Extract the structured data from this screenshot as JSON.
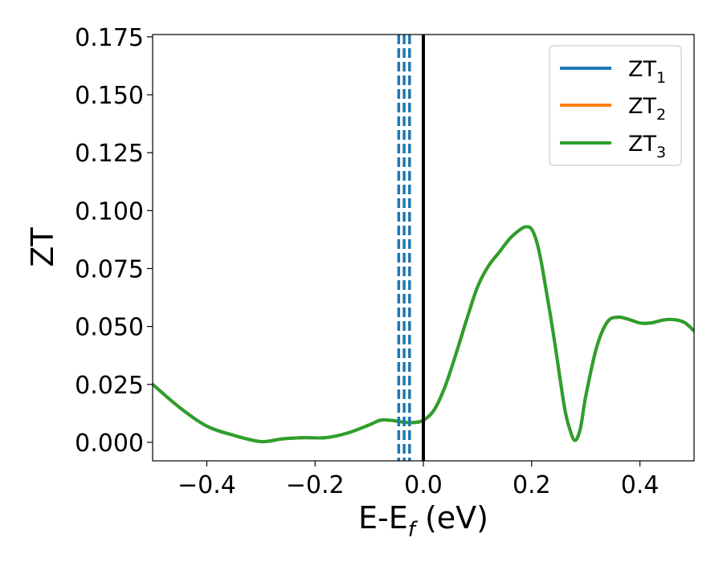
{
  "chart_data": {
    "type": "line",
    "xlabel": "E-E",
    "xlabel_sub": "f",
    "xlabel_unit": " (eV)",
    "ylabel": "ZT",
    "xlim": [
      -0.5,
      0.5
    ],
    "ylim": [
      -0.008,
      0.176
    ],
    "xticks": [
      -0.4,
      -0.2,
      0.0,
      0.2,
      0.4
    ],
    "xtick_labels": [
      "−0.4",
      "−0.2",
      "0.0",
      "0.2",
      "0.4"
    ],
    "yticks": [
      0.0,
      0.025,
      0.05,
      0.075,
      0.1,
      0.125,
      0.15,
      0.175
    ],
    "ytick_labels": [
      "0.000",
      "0.025",
      "0.050",
      "0.075",
      "0.100",
      "0.125",
      "0.150",
      "0.175"
    ],
    "legend_position": "top-right",
    "vertical_lines": [
      {
        "x": 0.0,
        "style": "solid",
        "color": "#000000"
      },
      {
        "x": -0.0455,
        "style": "dashed",
        "color": "#1f77b4"
      },
      {
        "x": -0.0355,
        "style": "dashed",
        "color": "#1f77b4"
      },
      {
        "x": -0.0255,
        "style": "dashed",
        "color": "#1f77b4"
      }
    ],
    "x": [
      -0.5,
      -0.45,
      -0.4,
      -0.35,
      -0.3,
      -0.26,
      -0.22,
      -0.18,
      -0.14,
      -0.1,
      -0.08,
      -0.06,
      -0.04,
      -0.02,
      0.0,
      0.02,
      0.04,
      0.06,
      0.08,
      0.1,
      0.12,
      0.14,
      0.16,
      0.18,
      0.19,
      0.2,
      0.21,
      0.22,
      0.24,
      0.26,
      0.27,
      0.28,
      0.29,
      0.3,
      0.32,
      0.34,
      0.36,
      0.38,
      0.4,
      0.42,
      0.45,
      0.48,
      0.5
    ],
    "series": [
      {
        "name": "ZT",
        "name_sub": "1",
        "color": "#1f77b4",
        "values": [
          0.025,
          0.015,
          0.007,
          0.003,
          0.0003,
          0.0015,
          0.002,
          0.002,
          0.004,
          0.0075,
          0.0095,
          0.0095,
          0.0088,
          0.0085,
          0.0095,
          0.014,
          0.024,
          0.038,
          0.053,
          0.067,
          0.076,
          0.082,
          0.088,
          0.092,
          0.093,
          0.092,
          0.086,
          0.075,
          0.047,
          0.016,
          0.006,
          0.0008,
          0.006,
          0.02,
          0.041,
          0.052,
          0.054,
          0.053,
          0.0515,
          0.0515,
          0.053,
          0.052,
          0.048
        ]
      },
      {
        "name": "ZT",
        "name_sub": "2",
        "color": "#ff7f0e",
        "values": [
          0.025,
          0.015,
          0.007,
          0.003,
          0.0003,
          0.0015,
          0.002,
          0.002,
          0.004,
          0.0075,
          0.0095,
          0.0095,
          0.0088,
          0.0085,
          0.0095,
          0.014,
          0.024,
          0.038,
          0.053,
          0.067,
          0.076,
          0.082,
          0.088,
          0.092,
          0.093,
          0.092,
          0.086,
          0.075,
          0.047,
          0.016,
          0.006,
          0.0008,
          0.006,
          0.02,
          0.041,
          0.052,
          0.054,
          0.053,
          0.0515,
          0.0515,
          0.053,
          0.052,
          0.048
        ]
      },
      {
        "name": "ZT",
        "name_sub": "3",
        "color": "#2ca02c",
        "values": [
          0.025,
          0.015,
          0.007,
          0.003,
          0.0003,
          0.0015,
          0.002,
          0.002,
          0.004,
          0.0075,
          0.0095,
          0.0095,
          0.0088,
          0.0085,
          0.0095,
          0.014,
          0.024,
          0.038,
          0.053,
          0.067,
          0.076,
          0.082,
          0.088,
          0.092,
          0.093,
          0.092,
          0.086,
          0.075,
          0.047,
          0.016,
          0.006,
          0.0008,
          0.006,
          0.02,
          0.041,
          0.052,
          0.054,
          0.053,
          0.0515,
          0.0515,
          0.053,
          0.052,
          0.048
        ]
      }
    ]
  }
}
